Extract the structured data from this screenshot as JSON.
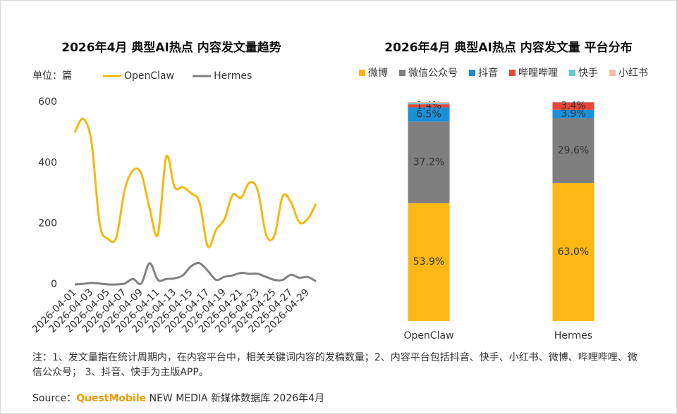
{
  "chart_data": [
    {
      "type": "line",
      "title": "2026年4月 典型AI热点 内容发文量趋势",
      "unit_label": "单位：篇",
      "x": [
        "2026-04-01",
        "2026-04-02",
        "2026-04-03",
        "2026-04-04",
        "2026-04-05",
        "2026-04-06",
        "2026-04-07",
        "2026-04-08",
        "2026-04-09",
        "2026-04-10",
        "2026-04-11",
        "2026-04-12",
        "2026-04-13",
        "2026-04-14",
        "2026-04-15",
        "2026-04-16",
        "2026-04-17",
        "2026-04-18",
        "2026-04-19",
        "2026-04-20",
        "2026-04-21",
        "2026-04-22",
        "2026-04-23",
        "2026-04-24",
        "2026-04-25",
        "2026-04-26",
        "2026-04-27",
        "2026-04-28",
        "2026-04-29",
        "2026-04-30"
      ],
      "xticks": [
        "2026-04-01",
        "2026-04-03",
        "2026-04-05",
        "2026-04-07",
        "2026-04-09",
        "2026-04-11",
        "2026-04-13",
        "2026-04-15",
        "2026-04-17",
        "2026-04-19",
        "2026-04-21",
        "2026-04-23",
        "2026-04-25",
        "2026-04-27",
        "2026-04-29"
      ],
      "series": [
        {
          "name": "OpenClaw",
          "color": "#f5b80f",
          "values": [
            500,
            545,
            470,
            200,
            150,
            155,
            310,
            375,
            365,
            250,
            165,
            420,
            320,
            320,
            300,
            270,
            125,
            180,
            215,
            295,
            285,
            335,
            310,
            165,
            160,
            290,
            270,
            205,
            215,
            265
          ]
        },
        {
          "name": "Hermes",
          "color": "#808080",
          "values": [
            0,
            2,
            5,
            3,
            0,
            0,
            3,
            18,
            3,
            70,
            15,
            18,
            20,
            30,
            60,
            70,
            45,
            15,
            25,
            30,
            38,
            35,
            35,
            25,
            15,
            15,
            32,
            22,
            25,
            10
          ]
        }
      ],
      "ylim": [
        0,
        600
      ],
      "yticks": [
        0,
        200,
        400,
        600
      ]
    },
    {
      "type": "stacked_bar",
      "title": "2026年4月 典型AI热点 内容发文量 平台分布",
      "categories": [
        "OpenClaw",
        "Hermes"
      ],
      "series": [
        {
          "name": "微博",
          "color": "#fbb714",
          "values": [
            53.9,
            63.0
          ],
          "value_labels": [
            "53.9%",
            "63.0%"
          ]
        },
        {
          "name": "微信公众号",
          "color": "#7f7f7f",
          "values": [
            37.2,
            29.6
          ],
          "value_labels": [
            "37.2%",
            "29.6%"
          ]
        },
        {
          "name": "抖音",
          "color": "#1b8fd8",
          "values": [
            6.5,
            3.9
          ],
          "value_labels": [
            "6.5%",
            "3.9%"
          ]
        },
        {
          "name": "哔哩哔哩",
          "color": "#e8473a",
          "values": [
            1.4,
            3.4
          ],
          "value_labels": [
            "1.4%",
            "3.4%"
          ]
        },
        {
          "name": "快手",
          "color": "#5ccbd3",
          "values": [
            0.6,
            0.1
          ],
          "value_labels": [
            null,
            null
          ]
        },
        {
          "name": "小红书",
          "color": "#f8b9a6",
          "values": [
            0.4,
            0.0
          ],
          "value_labels": [
            null,
            null
          ]
        }
      ],
      "ylim": [
        0,
        100
      ]
    }
  ],
  "footer": {
    "note": "注：1、发文量指在统计周期内，在内容平台中，相关关键词内容的发稿数量；2、内容平台包括抖音、快手、小红书、微博、哔哩哔哩、微信公众号； 3、抖音、快手为主版APP。",
    "source_prefix": "Source：",
    "source_brand": "QuestMobile",
    "source_rest": " NEW MEDIA 新媒体数据库 2026年4月"
  }
}
